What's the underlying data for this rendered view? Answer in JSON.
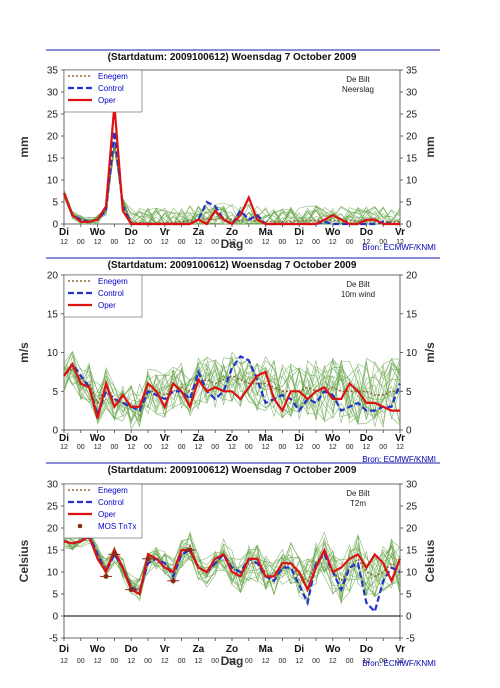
{
  "header_title": "(Startdatum: 2009100612)   Woensdag  7 October  2009",
  "source": "Bron: ECMWF/KNMI",
  "colors": {
    "member": "#6aa84f",
    "enegem": "#8b6b3a",
    "control": "#2233cc",
    "oper": "#dd1111",
    "mos": "#8b2a1a",
    "frame_line": "#1a1aaa"
  },
  "legend_labels": {
    "enegem": "Enegem",
    "control": "Control",
    "oper": "Oper",
    "mos": "MOS TnTx"
  },
  "x_day_labels": [
    "Di",
    "Wo",
    "Do",
    "Vr",
    "Za",
    "Zo",
    "Ma",
    "Di",
    "Wo",
    "Do",
    "Vr"
  ],
  "x_sub_labels": [
    "12",
    "00",
    "12",
    "00",
    "12",
    "00",
    "12",
    "00",
    "12",
    "00",
    "12",
    "00",
    "12",
    "00",
    "12",
    "00",
    "12",
    "00",
    "12",
    "00",
    "12"
  ],
  "x_axis_label": "Dag",
  "chart_data": [
    {
      "type": "line",
      "location": "De Bilt",
      "variable": "Neerslag",
      "ylabel": "mm",
      "ylim": [
        0,
        35
      ],
      "yticks": [
        0,
        5,
        10,
        15,
        20,
        25,
        30,
        35
      ],
      "xlabel": "Dag",
      "x_range": [
        0,
        40
      ],
      "series": [
        {
          "name": "Enegem",
          "values": [
            7,
            2,
            1,
            0.5,
            1,
            3,
            18,
            5,
            0.5,
            0.3,
            0.2,
            0.2,
            0.2,
            0.3,
            0.5,
            0.8,
            1,
            1.2,
            1,
            1.5,
            1,
            0.8,
            1,
            0.7,
            0.6,
            0.5,
            0.5,
            0.6,
            0.7,
            0.8,
            0.8,
            0.9,
            0.8,
            0.7,
            0.8,
            0.7,
            0.6,
            0.5,
            0.6,
            0.5,
            0.5
          ]
        },
        {
          "name": "Control",
          "values": [
            7,
            2,
            1,
            0.5,
            1,
            3,
            21,
            4,
            0,
            0,
            0,
            0,
            0,
            0,
            0,
            0,
            1,
            5,
            4,
            1,
            0,
            3,
            1,
            2,
            0,
            0,
            0,
            0,
            0,
            0,
            0,
            0.5,
            0,
            0,
            0,
            0,
            0,
            0,
            0.5,
            0,
            0
          ]
        },
        {
          "name": "Oper",
          "values": [
            7,
            2,
            0.5,
            0.5,
            1,
            4,
            27,
            3,
            0,
            0,
            0,
            0,
            0,
            0,
            0,
            0,
            1,
            0,
            3,
            1,
            0,
            2,
            6,
            1,
            0,
            0,
            0,
            0,
            0,
            0,
            0,
            1,
            2,
            1,
            0,
            0,
            1,
            1,
            0,
            0,
            0
          ]
        }
      ]
    },
    {
      "type": "line",
      "location": "De Bilt",
      "variable": "10m wind",
      "ylabel": "m/s",
      "ylim": [
        0,
        20
      ],
      "yticks": [
        0,
        5,
        10,
        15,
        20
      ],
      "xlabel": "Dag",
      "x_range": [
        0,
        40
      ],
      "series": [
        {
          "name": "Enegem",
          "values": [
            7,
            8,
            6.5,
            6,
            3.5,
            5.5,
            4,
            3.5,
            3,
            3,
            5,
            5,
            4.5,
            5,
            5.5,
            5,
            6,
            6.5,
            6,
            6.5,
            7,
            6.5,
            6,
            6,
            6,
            5.5,
            5,
            5,
            5,
            5.5,
            5,
            5,
            5.5,
            5,
            5,
            5,
            5,
            4.5,
            4.5,
            5,
            5
          ]
        },
        {
          "name": "Control",
          "values": [
            7,
            8.5,
            7,
            5.5,
            2,
            5,
            4,
            3.5,
            3,
            2.5,
            5,
            4.5,
            4,
            5,
            5,
            4,
            7.5,
            5,
            4,
            5,
            8,
            9.5,
            9,
            6.5,
            3.5,
            4,
            4.5,
            4,
            2.5,
            4,
            3.5,
            5,
            4.5,
            2.5,
            3,
            3.5,
            2.5,
            2.5,
            3,
            3,
            6
          ]
        },
        {
          "name": "Oper",
          "values": [
            7,
            8.5,
            6,
            5.5,
            1.5,
            6,
            3,
            4.5,
            3,
            3,
            6,
            5,
            3,
            6,
            5,
            3,
            6.5,
            5,
            5.5,
            5,
            5,
            4,
            5.5,
            7,
            7.5,
            4,
            2.5,
            5,
            5,
            4,
            5,
            5.5,
            4,
            4,
            6,
            5,
            3.5,
            3.5,
            3,
            2.5,
            2.5
          ]
        }
      ]
    },
    {
      "type": "line",
      "location": "De Bilt",
      "variable": "T2m",
      "ylabel": "Celsius",
      "ylim": [
        -5,
        30
      ],
      "yticks": [
        -5,
        0,
        5,
        10,
        15,
        20,
        25,
        30
      ],
      "xlabel": "Dag",
      "x_range": [
        0,
        40
      ],
      "series": [
        {
          "name": "Enegem",
          "values": [
            17,
            16.5,
            17,
            18,
            14,
            11,
            14,
            11,
            7,
            6,
            12,
            13,
            12,
            10,
            14,
            16,
            11,
            10,
            12,
            14,
            11,
            9,
            12,
            12,
            10,
            8,
            11,
            12,
            9,
            8,
            12,
            14,
            10,
            8,
            11,
            13,
            10,
            9,
            10,
            12,
            11
          ]
        },
        {
          "name": "Control",
          "values": [
            17,
            16.5,
            17,
            18.5,
            14,
            10,
            14,
            11,
            6.5,
            5.5,
            12,
            13,
            12,
            9,
            14,
            15,
            11,
            10,
            12,
            14,
            11,
            10,
            13,
            12,
            9,
            8,
            11,
            11,
            7,
            3,
            12,
            14,
            10,
            6,
            11,
            12,
            3,
            1,
            8,
            11,
            10
          ]
        },
        {
          "name": "Oper",
          "values": [
            17,
            16.5,
            17,
            18,
            13,
            10,
            15,
            11,
            6,
            5,
            14,
            13,
            11,
            10,
            15,
            15,
            11,
            10,
            13,
            14,
            10,
            9,
            13,
            13,
            9,
            9,
            12,
            12,
            10,
            6,
            11,
            15,
            10,
            11,
            13,
            14,
            11,
            14,
            12,
            8,
            13
          ]
        },
        {
          "name": "MOS TnTx",
          "values": [
            null,
            null,
            null,
            18,
            null,
            9,
            14,
            null,
            6,
            null,
            13,
            null,
            null,
            8,
            null,
            15,
            null,
            null,
            null,
            null,
            null,
            null,
            null,
            null,
            null,
            null,
            null,
            null,
            null,
            null,
            null,
            null,
            null,
            null,
            null,
            null,
            null,
            null,
            null,
            null,
            null
          ]
        }
      ]
    }
  ]
}
